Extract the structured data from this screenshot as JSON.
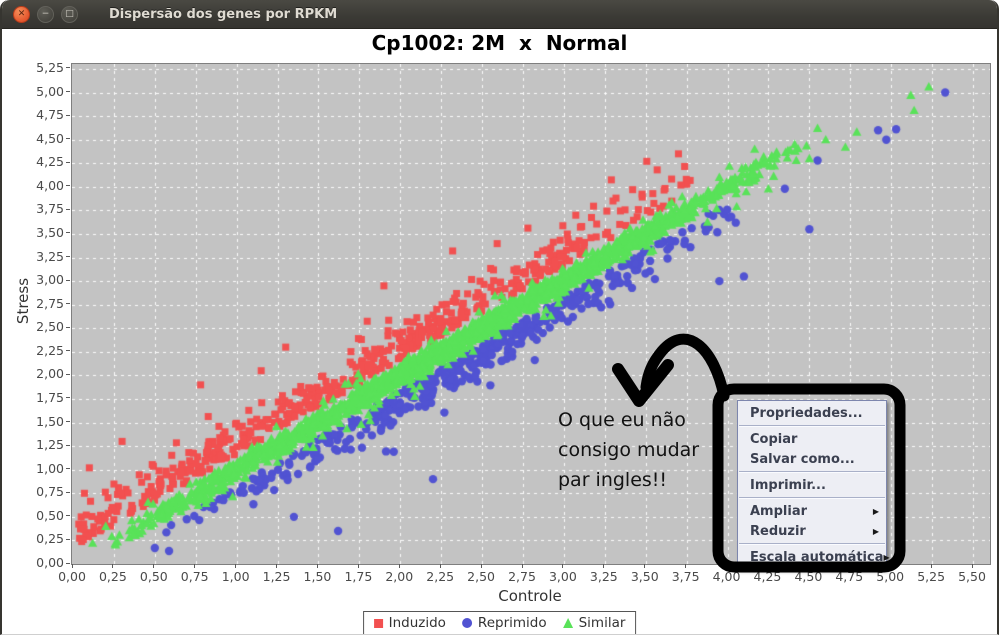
{
  "window": {
    "title": "Dispersão dos genes por RPKM",
    "buttons": {
      "close": "✕",
      "minimize": "−",
      "maximize": "□"
    }
  },
  "chart_data": {
    "type": "scatter",
    "title": "Cp1002: 2M  x  Normal",
    "xlabel": "Controle",
    "ylabel": "Stress",
    "xlim": [
      0,
      5.6
    ],
    "ylim": [
      0,
      5.3
    ],
    "tick_step": 0.25,
    "x_ticks": [
      "0,00",
      "0,25",
      "0,50",
      "0,75",
      "1,00",
      "1,25",
      "1,50",
      "1,75",
      "2,00",
      "2,25",
      "2,50",
      "2,75",
      "3,00",
      "3,25",
      "3,50",
      "3,75",
      "4,00",
      "4,25",
      "4,50",
      "4,75",
      "5,00",
      "5,25",
      "5,50"
    ],
    "y_ticks": [
      "0,00",
      "0,25",
      "0,50",
      "0,75",
      "1,00",
      "1,25",
      "1,50",
      "1,75",
      "2,00",
      "2,25",
      "2,50",
      "2,75",
      "3,00",
      "3,25",
      "3,50",
      "3,75",
      "4,00",
      "4,25",
      "4,50",
      "4,75",
      "5,00",
      "5,25"
    ],
    "grid": "white-dashed",
    "plot_background": "#c3c3c3",
    "legend_position": "bottom",
    "random_seed": 11,
    "series": [
      {
        "name": "Induzido",
        "marker": "square",
        "color": "#f25050",
        "n": 540,
        "band_offset": 0.17,
        "band_spread": 0.5,
        "x_range": [
          0.03,
          3.9
        ],
        "extra_points": [
          [
            3.7,
            4.35
          ],
          [
            3.57,
            4.18
          ],
          [
            3.42,
            3.97
          ],
          [
            3.3,
            3.85
          ],
          [
            0.07,
            0.75
          ],
          [
            0.1,
            1.02
          ],
          [
            0.78,
            1.9
          ],
          [
            1.15,
            2.05
          ],
          [
            1.9,
            2.95
          ],
          [
            2.32,
            3.32
          ],
          [
            0.05,
            0.5
          ],
          [
            0.3,
            1.3
          ],
          [
            1.3,
            2.3
          ]
        ]
      },
      {
        "name": "Reprimido",
        "marker": "circle",
        "color": "#5153d2",
        "n": 440,
        "band_offset": -0.17,
        "band_spread": 0.42,
        "x_range": [
          0.5,
          4.25
        ],
        "extra_points": [
          [
            5.33,
            5.0
          ],
          [
            4.92,
            4.6
          ],
          [
            5.03,
            4.61
          ],
          [
            4.97,
            4.5
          ],
          [
            4.55,
            4.28
          ],
          [
            4.35,
            3.98
          ],
          [
            4.5,
            3.55
          ],
          [
            4.05,
            3.62
          ],
          [
            0.5,
            0.17
          ],
          [
            1.35,
            0.5
          ],
          [
            1.62,
            0.35
          ],
          [
            2.2,
            0.9
          ],
          [
            3.95,
            3.0
          ],
          [
            4.1,
            3.05
          ]
        ]
      },
      {
        "name": "Similar",
        "marker": "triangle",
        "color": "#59e259",
        "n": 2000,
        "band_offset": 0.0,
        "band_spread": 0.16,
        "x_range": [
          0.05,
          4.55
        ],
        "extra_points": [
          [
            5.12,
            4.97
          ],
          [
            5.23,
            5.06
          ],
          [
            5.14,
            4.81
          ],
          [
            4.79,
            4.58
          ],
          [
            4.6,
            4.5
          ],
          [
            4.55,
            4.62
          ],
          [
            4.5,
            4.3
          ],
          [
            4.42,
            4.28
          ],
          [
            3.95,
            4.1
          ],
          [
            4.72,
            4.42
          ],
          [
            0.12,
            0.22
          ],
          [
            0.2,
            0.4
          ]
        ]
      }
    ]
  },
  "context_menu": {
    "items": [
      {
        "label": "Propriedades...",
        "submenu": false,
        "separator_after": true
      },
      {
        "label": "Copiar",
        "submenu": false,
        "separator_after": false
      },
      {
        "label": "Salvar como...",
        "submenu": false,
        "separator_after": true
      },
      {
        "label": "Imprimir...",
        "submenu": false,
        "separator_after": true
      },
      {
        "label": "Ampliar",
        "submenu": true,
        "separator_after": false
      },
      {
        "label": "Reduzir",
        "submenu": true,
        "separator_after": true
      },
      {
        "label": "Escala automática",
        "submenu": true,
        "separator_after": false
      }
    ]
  },
  "annotation": {
    "lines": [
      "O que eu não",
      "consigo mudar",
      "par ingles!!"
    ]
  }
}
